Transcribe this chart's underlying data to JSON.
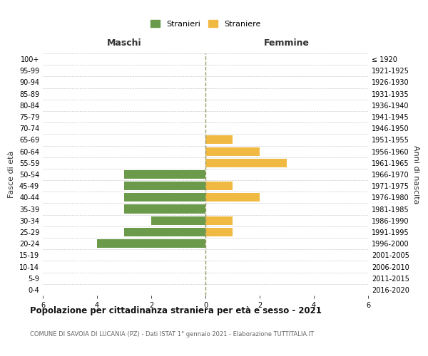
{
  "age_groups": [
    "0-4",
    "5-9",
    "10-14",
    "15-19",
    "20-24",
    "25-29",
    "30-34",
    "35-39",
    "40-44",
    "45-49",
    "50-54",
    "55-59",
    "60-64",
    "65-69",
    "70-74",
    "75-79",
    "80-84",
    "85-89",
    "90-94",
    "95-99",
    "100+"
  ],
  "birth_years": [
    "2016-2020",
    "2011-2015",
    "2006-2010",
    "2001-2005",
    "1996-2000",
    "1991-1995",
    "1986-1990",
    "1981-1985",
    "1976-1980",
    "1971-1975",
    "1966-1970",
    "1961-1965",
    "1956-1960",
    "1951-1955",
    "1946-1950",
    "1941-1945",
    "1936-1940",
    "1931-1935",
    "1926-1930",
    "1921-1925",
    "≤ 1920"
  ],
  "maschi": [
    0,
    0,
    0,
    0,
    4,
    3,
    2,
    3,
    3,
    3,
    3,
    0,
    0,
    0,
    0,
    0,
    0,
    0,
    0,
    0,
    0
  ],
  "femmine": [
    0,
    0,
    0,
    0,
    0,
    1,
    1,
    0,
    2,
    1,
    0,
    3,
    2,
    1,
    0,
    0,
    0,
    0,
    0,
    0,
    0
  ],
  "color_maschi": "#6a9a4a",
  "color_femmine": "#f0b942",
  "xlim": 6,
  "title": "Popolazione per cittadinanza straniera per età e sesso - 2021",
  "subtitle": "COMUNE DI SAVOIA DI LUCANIA (PZ) - Dati ISTAT 1° gennaio 2021 - Elaborazione TUTTITALIA.IT",
  "ylabel_left": "Fasce di età",
  "ylabel_right": "Anni di nascita",
  "label_maschi": "Stranieri",
  "label_femmine": "Straniere",
  "background_color": "#ffffff",
  "grid_color": "#cccccc",
  "dashed_line_color": "#999966"
}
